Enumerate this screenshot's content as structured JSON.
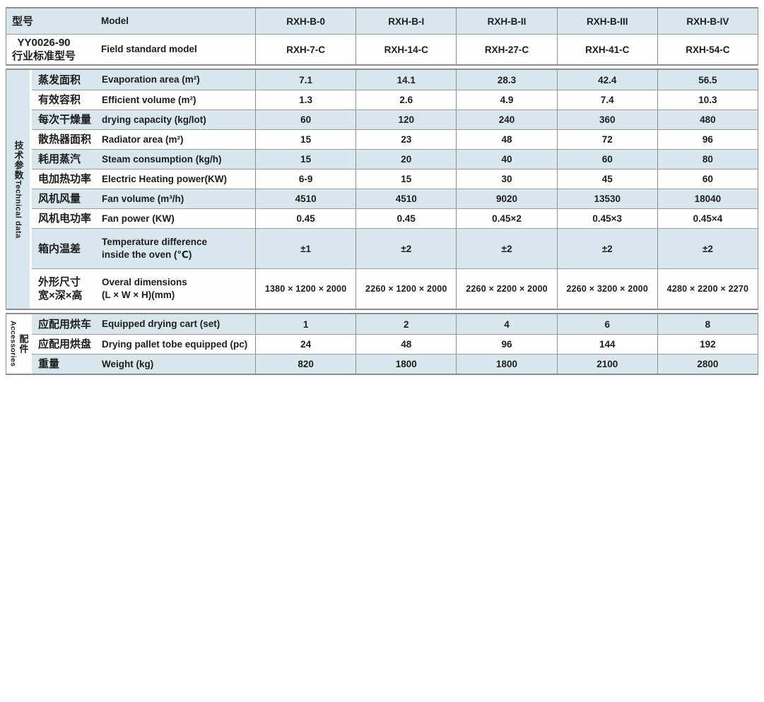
{
  "colors": {
    "row_blue": "#d8e7ed",
    "row_white": "#fdfdfb",
    "border_gray": "#8d8d8d",
    "text": "#1d1d1d"
  },
  "sections": {
    "head": {
      "rows": [
        {
          "cn": "型号",
          "en": "Model",
          "values": [
            "RXH-B-0",
            "RXH-B-I",
            "RXH-B-II",
            "RXH-B-III",
            "RXH-B-IV"
          ]
        },
        {
          "cn": "YY0026-90",
          "cn2": "行业标准型号",
          "en": "Field standard model",
          "values": [
            "RXH-7-C",
            "RXH-14-C",
            "RXH-27-C",
            "RXH-41-C",
            "RXH-54-C"
          ]
        }
      ]
    },
    "technical": {
      "group_cn": "技术参数",
      "group_en": "Technical data",
      "rows": [
        {
          "cn": "蒸发面积",
          "en": "Evaporation area (m²)",
          "values": [
            "7.1",
            "14.1",
            "28.3",
            "42.4",
            "56.5"
          ]
        },
        {
          "cn": "有效容积",
          "en": "Efficient volume (m²)",
          "values": [
            "1.3",
            "2.6",
            "4.9",
            "7.4",
            "10.3"
          ]
        },
        {
          "cn": "每次干燥量",
          "en": "drying capacity (kg/lot)",
          "values": [
            "60",
            "120",
            "240",
            "360",
            "480"
          ]
        },
        {
          "cn": "散热器面积",
          "en": "Radiator area (m²)",
          "values": [
            "15",
            "23",
            "48",
            "72",
            "96"
          ]
        },
        {
          "cn": "耗用蒸汽",
          "en": "Steam consumption (kg/h)",
          "values": [
            "15",
            "20",
            "40",
            "60",
            "80"
          ]
        },
        {
          "cn": "电加热功率",
          "en": "Electric Heating power(KW)",
          "values": [
            "6-9",
            "15",
            "30",
            "45",
            "60"
          ]
        },
        {
          "cn": "风机风量",
          "en": "Fan volume (m³/h)",
          "values": [
            "4510",
            "4510",
            "9020",
            "13530",
            "18040"
          ]
        },
        {
          "cn": "风机电功率",
          "en": "Fan power (KW)",
          "values": [
            "0.45",
            "0.45",
            "0.45×2",
            "0.45×3",
            "0.45×4"
          ]
        },
        {
          "cn": "箱内温差",
          "en": "Temperature difference",
          "en2": "inside the oven (℃)",
          "values": [
            "±1",
            "±2",
            "±2",
            "±2",
            "±2"
          ]
        },
        {
          "cn": "外形尺寸",
          "cn2": "宽×深×高",
          "en": "Overal dimensions",
          "en2": "(L × W × H)(mm)",
          "values": [
            "1380 × 1200 × 2000",
            "2260 × 1200 × 2000",
            "2260 × 2200 × 2000",
            "2260 × 3200 × 2000",
            "4280 × 2200 × 2270"
          ]
        }
      ]
    },
    "accessories": {
      "group_cn": "配件",
      "group_en": "Accessories",
      "rows": [
        {
          "cn": "应配用烘车",
          "en": "Equipped drying cart (set)",
          "values": [
            "1",
            "2",
            "4",
            "6",
            "8"
          ]
        },
        {
          "cn": "应配用烘盘",
          "en": "Drying pallet tobe equipped (pc)",
          "values": [
            "24",
            "48",
            "96",
            "144",
            "192"
          ]
        },
        {
          "cn": "重量",
          "en": "Weight (kg)",
          "values": [
            "820",
            "1800",
            "1800",
            "2100",
            "2800"
          ]
        }
      ]
    }
  }
}
